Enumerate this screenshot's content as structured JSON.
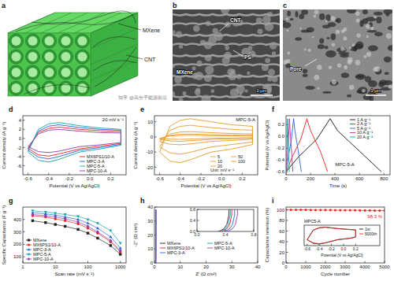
{
  "figure": {
    "a": {
      "label": "a",
      "labels": [
        "MXene",
        "CNT"
      ]
    },
    "b": {
      "label": "b",
      "labels": [
        "CNT",
        "PS",
        "MXene"
      ],
      "scale_bar": "1 μm"
    },
    "c": {
      "label": "c",
      "labels": [
        "Pore"
      ],
      "scale_bar": "1 μm"
    },
    "watermark": "知乎 @高分子能源前沿"
  },
  "chart_data": [
    {
      "panel_label": "d",
      "type": "line",
      "annotations": [
        "20 mV s⁻¹"
      ],
      "xlabel": "Potential (V vs Ag/AgCl)",
      "ylabel": "Current density (A g⁻¹)",
      "x": [
        -0.6,
        -0.5,
        -0.4,
        -0.3,
        -0.1,
        0.1,
        0.3,
        0.3,
        0.1,
        -0.1,
        -0.3,
        -0.4,
        -0.5,
        -0.6
      ],
      "series": [
        {
          "name": "MX6PS1/10-A",
          "color": "#e8231f",
          "values": [
            -2.2,
            1.3,
            2.2,
            2.5,
            2.0,
            1.7,
            1.5,
            -1.1,
            -1.7,
            -2.3,
            -3.4,
            -3.9,
            -3.6,
            -2.2
          ]
        },
        {
          "name": "MPC-3-A",
          "color": "#2b5fd9",
          "values": [
            -2.6,
            1.6,
            2.7,
            3.0,
            2.4,
            2.0,
            1.8,
            -1.3,
            -2.0,
            -2.6,
            -4.0,
            -4.5,
            -4.1,
            -2.6
          ]
        },
        {
          "name": "MPC-5-A",
          "color": "#13a3a8",
          "values": [
            -3.0,
            2.0,
            3.2,
            3.5,
            2.8,
            2.3,
            2.0,
            -1.5,
            -2.3,
            -3.0,
            -4.6,
            -5.2,
            -4.8,
            -3.0
          ]
        },
        {
          "name": "MPC-10-A",
          "color": "#8e3ea8",
          "values": [
            -1.8,
            1.0,
            1.8,
            2.0,
            1.6,
            1.3,
            1.2,
            -0.9,
            -1.4,
            -1.8,
            -2.8,
            -3.1,
            -2.9,
            -1.8
          ]
        }
      ],
      "xlim": [
        -0.65,
        0.35
      ],
      "ylim": [
        -8,
        5
      ],
      "xticks": [
        -0.6,
        -0.4,
        -0.2,
        {
          "value": 0,
          "label": "0.0"
        },
        0.2
      ],
      "yticks": [
        -6,
        -4,
        -2,
        0,
        2,
        4
      ],
      "legend": "lower right"
    },
    {
      "panel_label": "e",
      "type": "line",
      "annotations": [
        "MPC-5-A",
        "Unit: mV s⁻¹"
      ],
      "xlabel": "Potential (V vs Ag/AgCl)",
      "ylabel": "Current density (A g⁻¹)",
      "x": [
        -0.6,
        -0.5,
        -0.4,
        -0.3,
        -0.1,
        0.1,
        0.3,
        0.3,
        0.1,
        -0.1,
        -0.3,
        -0.4,
        -0.5,
        -0.6
      ],
      "series": [
        {
          "name": "5",
          "color": "#e89a2c",
          "values": [
            -0.9,
            0.6,
            1.0,
            1.1,
            0.8,
            0.7,
            0.6,
            -0.5,
            -0.7,
            -0.9,
            -1.4,
            -1.6,
            -1.4,
            -0.9
          ]
        },
        {
          "name": "10",
          "color": "#e89a2c",
          "values": [
            -1.6,
            1.1,
            1.8,
            1.9,
            1.5,
            1.3,
            1.1,
            -0.8,
            -1.3,
            -1.6,
            -2.5,
            -2.9,
            -2.6,
            -1.6
          ]
        },
        {
          "name": "20",
          "color": "#e89a2c",
          "values": [
            -3.0,
            2.0,
            3.2,
            3.5,
            2.8,
            2.3,
            2.0,
            -1.5,
            -2.3,
            -3.0,
            -4.6,
            -5.2,
            -4.8,
            -3.0
          ]
        },
        {
          "name": "50",
          "color": "#e89a2c",
          "values": [
            -6.6,
            4.4,
            7.0,
            7.7,
            6.2,
            5.0,
            4.4,
            -3.3,
            -5.0,
            -6.6,
            -10.1,
            -11.4,
            -10.5,
            -6.6
          ]
        },
        {
          "name": "100",
          "color": "#e89a2c",
          "values": [
            -10,
            7,
            11,
            12,
            10,
            8,
            7,
            -5,
            -8,
            -10,
            -15,
            -17,
            -16,
            -10
          ]
        }
      ],
      "xlim": [
        -0.65,
        0.35
      ],
      "ylim": [
        -25,
        14
      ],
      "xticks": [
        -0.6,
        -0.4,
        -0.2,
        {
          "value": 0,
          "label": "0.0"
        },
        0.2
      ],
      "yticks": [
        -20,
        -10,
        0,
        10
      ],
      "legend": "lower right"
    },
    {
      "panel_label": "f",
      "type": "line",
      "annotations": [
        "MPC-5-A"
      ],
      "xlabel": "Time (s)",
      "ylabel": "Potential (V vs Ag/AgCl)",
      "series": [
        {
          "name": "1 A g⁻¹",
          "color": "#111111",
          "x": [
            0,
            100,
            250,
            360,
            420,
            600,
            780
          ],
          "values": [
            -0.6,
            -0.35,
            -0.05,
            0.3,
            0.1,
            -0.25,
            -0.6
          ]
        },
        {
          "name": "2 A g⁻¹",
          "color": "#e8231f",
          "x": [
            0,
            50,
            120,
            170,
            200,
            280,
            340
          ],
          "values": [
            -0.6,
            -0.35,
            -0.05,
            0.3,
            0.1,
            -0.25,
            -0.6
          ]
        },
        {
          "name": "5 A g⁻¹",
          "color": "#2b5fd9",
          "x": [
            0,
            18,
            44,
            62,
            72,
            100,
            125
          ],
          "values": [
            -0.6,
            -0.35,
            -0.05,
            0.3,
            0.1,
            -0.25,
            -0.6
          ]
        },
        {
          "name": "10 A g⁻¹",
          "color": "#c2308f",
          "x": [
            0,
            8,
            20,
            28,
            33,
            45,
            56
          ],
          "values": [
            -0.6,
            -0.35,
            -0.05,
            0.3,
            0.1,
            -0.25,
            -0.6
          ]
        },
        {
          "name": "20 A g⁻¹",
          "color": "#13a3a8",
          "x": [
            0,
            4,
            9,
            13,
            15,
            21,
            27
          ],
          "values": [
            -0.6,
            -0.35,
            -0.05,
            0.3,
            0.1,
            -0.25,
            -0.6
          ]
        }
      ],
      "xlim": [
        0,
        850
      ],
      "ylim": [
        -0.65,
        0.35
      ],
      "xticks": [
        0,
        200,
        400,
        600,
        800
      ],
      "yticks": [
        -0.6,
        -0.4,
        -0.2,
        {
          "value": 0,
          "label": "0.0"
        },
        0.2
      ],
      "legend": "upper right"
    },
    {
      "panel_label": "g",
      "type": "line",
      "log": "x",
      "xlabel": "Scan rate (mV s⁻¹)",
      "ylabel": "Specific Capacitance (F g⁻¹)",
      "x": [
        2,
        5,
        10,
        20,
        50,
        100,
        200,
        500,
        1000
      ],
      "series": [
        {
          "name": "MXene",
          "color": "#222222",
          "marker": "square",
          "values": [
            390,
            375,
            360,
            345,
            320,
            290,
            250,
            190,
            120
          ]
        },
        {
          "name": "MX6PS1/10-A",
          "color": "#e8231f",
          "marker": "circle",
          "values": [
            430,
            420,
            405,
            390,
            365,
            330,
            290,
            220,
            140
          ]
        },
        {
          "name": "MPC-3-A",
          "color": "#2b5fd9",
          "marker": "triangle",
          "values": [
            455,
            445,
            435,
            420,
            400,
            370,
            330,
            260,
            170
          ]
        },
        {
          "name": "MPC-5-A",
          "color": "#13a3a8",
          "marker": "triangle-down",
          "values": [
            470,
            460,
            450,
            440,
            425,
            400,
            370,
            310,
            210
          ]
        },
        {
          "name": "MPC-10-A",
          "color": "#8e3ea8",
          "marker": "diamond",
          "values": [
            440,
            430,
            420,
            405,
            380,
            345,
            300,
            230,
            150
          ]
        }
      ],
      "xlim": [
        1,
        1500
      ],
      "ylim": [
        50,
        500
      ],
      "xticks": [
        1,
        10,
        100,
        1000
      ],
      "yticks": [
        100,
        200,
        300,
        400
      ],
      "legend": "lower left"
    },
    {
      "panel_label": "h",
      "type": "line",
      "xlabel": "Z' (Ω cm²)",
      "ylabel": "-Z'' (Ω cm²)",
      "series": [
        {
          "name": "MXene",
          "color": "#222222",
          "x": [
            0.3,
            0.34,
            0.38,
            0.42,
            0.45,
            0.47,
            0.49
          ],
          "values": [
            0,
            0.04,
            0.1,
            0.25,
            0.6,
            3,
            38
          ]
        },
        {
          "name": "MX6PS1/10-A",
          "color": "#e8231f",
          "x": [
            0.34,
            0.38,
            0.42,
            0.46,
            0.49,
            0.51,
            0.53
          ],
          "values": [
            0,
            0.04,
            0.1,
            0.25,
            0.6,
            3,
            38
          ]
        },
        {
          "name": "MPC-3-A",
          "color": "#2b5fd9",
          "x": [
            0.38,
            0.42,
            0.46,
            0.5,
            0.53,
            0.55,
            0.57
          ],
          "values": [
            0,
            0.04,
            0.1,
            0.25,
            0.6,
            3,
            38
          ]
        },
        {
          "name": "MPC-5-A",
          "color": "#13a3a8",
          "x": [
            0.32,
            0.36,
            0.4,
            0.44,
            0.47,
            0.49,
            0.51
          ],
          "values": [
            0,
            0.04,
            0.1,
            0.25,
            0.6,
            3,
            38
          ]
        },
        {
          "name": "MPC-10-A",
          "color": "#8e3ea8",
          "x": [
            0.42,
            0.46,
            0.5,
            0.54,
            0.57,
            0.59,
            0.61
          ],
          "values": [
            0,
            0.04,
            0.1,
            0.25,
            0.6,
            3,
            38
          ]
        }
      ],
      "xlim": [
        0,
        40
      ],
      "ylim": [
        0,
        40
      ],
      "xticks": [
        0,
        10,
        20,
        30,
        40
      ],
      "yticks": [
        0,
        10,
        20,
        30,
        40
      ],
      "legend": "lower left",
      "inset": {
        "xlim": [
          0,
          0.8
        ],
        "ylim": [
          0,
          0.8
        ],
        "xticks": [
          {
            "value": 0,
            "label": "0.0"
          },
          0.4,
          0.8
        ],
        "yticks": [
          {
            "value": 0,
            "label": "0.0"
          },
          0.4,
          0.8
        ]
      }
    },
    {
      "panel_label": "i",
      "type": "line",
      "annotations": [
        "98.3 %"
      ],
      "xlabel": "Cycle number",
      "ylabel": "Capacitance retention (%)",
      "x": [
        0,
        250,
        500,
        750,
        1000,
        1250,
        1500,
        1750,
        2000,
        2250,
        2500,
        2750,
        3000,
        3250,
        3500,
        3750,
        4000,
        4250,
        4500,
        4750,
        5000
      ],
      "series": [
        {
          "color": "#e8231f",
          "marker": "circle",
          "values": [
            100,
            99.9,
            99.8,
            99.8,
            99.7,
            99.6,
            99.5,
            99.5,
            99.4,
            99.3,
            99.2,
            99.1,
            99.1,
            99.0,
            98.9,
            98.8,
            98.7,
            98.6,
            98.5,
            98.4,
            98.3
          ]
        }
      ],
      "xlim": [
        0,
        5000
      ],
      "ylim": [
        0,
        105
      ],
      "xticks": [
        0,
        1000,
        2000,
        3000,
        4000,
        5000
      ],
      "yticks": [
        0,
        20,
        40,
        60,
        80,
        100
      ],
      "inset": {
        "type": "line",
        "annotations": [
          "MPC5-A"
        ],
        "xlabel": "Potential (V vs Ag/AgCl)",
        "x": [
          -0.6,
          -0.5,
          -0.4,
          -0.3,
          -0.1,
          0.1,
          0.2,
          0.2,
          0.1,
          -0.1,
          -0.3,
          -0.4,
          -0.5,
          -0.6
        ],
        "series": [
          {
            "name": "1st",
            "color": "#111111",
            "values": [
              -3.0,
              2.0,
              3.2,
              3.5,
              2.8,
              2.3,
              2.1,
              -1.6,
              -2.3,
              -3.0,
              -4.6,
              -5.2,
              -4.8,
              -3.0
            ]
          },
          {
            "name": "5000th",
            "color": "#e8231f",
            "values": [
              -2.9,
              1.9,
              3.1,
              3.4,
              2.7,
              2.2,
              2.0,
              -1.5,
              -2.2,
              -2.9,
              -4.5,
              -5.0,
              -4.6,
              -2.9
            ]
          }
        ],
        "xlim": [
          -0.65,
          0.6
        ],
        "ylim": [
          -6,
          4.5
        ],
        "xticks": [
          -0.6,
          -0.4,
          -0.2,
          {
            "value": 0,
            "label": "0.0"
          },
          0.2
        ],
        "tick_labels": "x",
        "legend": "upper right"
      }
    }
  ]
}
